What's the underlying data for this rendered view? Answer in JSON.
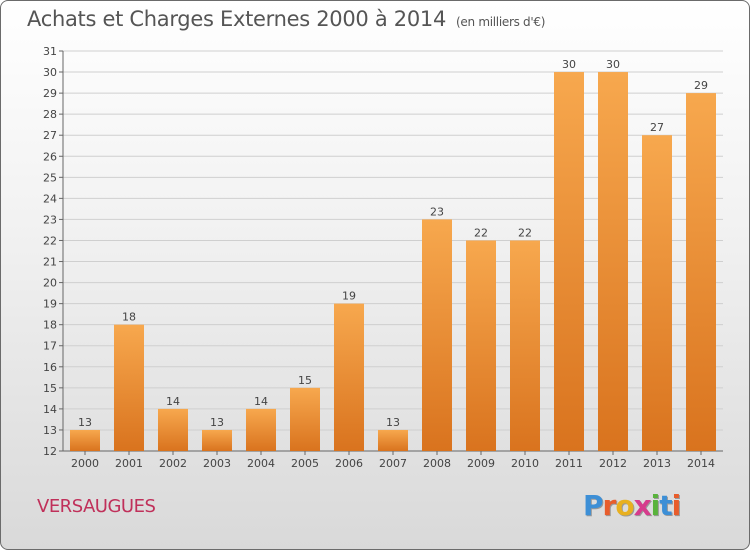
{
  "header": {
    "title": "Achats et Charges Externes 2000 à 2014",
    "subtitle": "(en milliers d'€)"
  },
  "footer": {
    "place": "VERSAUGUES",
    "logo_letters": [
      "P",
      "r",
      "o",
      "x",
      "i",
      "t",
      "i"
    ],
    "logo_colors": [
      "#3d8fd6",
      "#e85d2c",
      "#e8b020",
      "#d63c8c",
      "#59b33c",
      "#3d8fd6",
      "#e85d2c"
    ]
  },
  "colors": {
    "bar_light": "#f7a84e",
    "bar_dark": "#d9731e"
  },
  "chart_data": {
    "type": "bar",
    "title": "Achats et Charges Externes 2000 à 2014",
    "subtitle": "(en milliers d'€)",
    "categories": [
      "2000",
      "2001",
      "2002",
      "2003",
      "2004",
      "2005",
      "2006",
      "2007",
      "2008",
      "2009",
      "2010",
      "2011",
      "2012",
      "2013",
      "2014"
    ],
    "values": [
      13,
      18,
      14,
      13,
      14,
      15,
      19,
      13,
      23,
      22,
      22,
      30,
      30,
      27,
      29
    ],
    "ylim": [
      12,
      31
    ],
    "yticks": [
      12,
      13,
      14,
      15,
      16,
      17,
      18,
      19,
      20,
      21,
      22,
      23,
      24,
      25,
      26,
      27,
      28,
      29,
      30,
      31
    ],
    "grid": true,
    "xlabel": "",
    "ylabel": ""
  }
}
